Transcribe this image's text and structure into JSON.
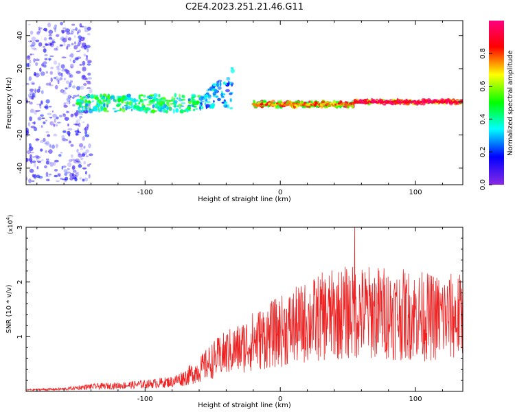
{
  "title": "C2E4.2023.251.21.46.G11",
  "chart_data": [
    {
      "type": "heatmap",
      "xlabel": "Height of straight line (km)",
      "ylabel": "Frequency (Hz)",
      "xlim": [
        -188,
        135
      ],
      "ylim": [
        -50,
        49
      ],
      "x_ticks": [
        -100,
        0,
        100
      ],
      "y_ticks": [
        -40,
        -20,
        0,
        20,
        40
      ],
      "grid": false,
      "colorbar": {
        "label": "Normalized spectral amplitude",
        "range": [
          0,
          1
        ],
        "ticks": [
          0.0,
          0.2,
          0.4,
          0.6,
          0.8
        ],
        "colormap": [
          "#8a2be2",
          "#0000ff",
          "#00ffff",
          "#00ff00",
          "#ffff00",
          "#ff0000",
          "#ff0080"
        ]
      },
      "bands": [
        {
          "x_range": [
            -188,
            -140
          ],
          "freq_range": [
            -48,
            48
          ],
          "amplitude": 0.15
        },
        {
          "x_range": [
            -150,
            -60
          ],
          "freq_range": [
            -6,
            4
          ],
          "amplitude": 0.45
        },
        {
          "x_range": [
            -60,
            -35
          ],
          "freq_range": [
            -4,
            22
          ],
          "amplitude": 0.3
        },
        {
          "x_range": [
            -20,
            55
          ],
          "freq_range": [
            -3,
            0
          ],
          "amplitude": 0.75
        },
        {
          "x_range": [
            55,
            135
          ],
          "freq_range": [
            -1,
            1
          ],
          "amplitude": 0.9
        }
      ]
    },
    {
      "type": "line",
      "xlabel": "Height of straight line (km)",
      "ylabel": "SNR (10 * v/v)",
      "y_multiplier": "(x10⁴)",
      "y_multiplier_base": "(x10",
      "y_multiplier_exp": "4",
      "y_multiplier_close": ")",
      "xlim": [
        -188,
        135
      ],
      "ylim": [
        0,
        30000
      ],
      "x_ticks": [
        -100,
        0,
        100
      ],
      "y_ticks": [
        1,
        2,
        3
      ],
      "grid": false,
      "series": [
        {
          "color": "#ee2222",
          "envelope_x": [
            -188,
            -160,
            -140,
            -120,
            -100,
            -80,
            -70,
            -60,
            -50,
            -40,
            -30,
            -20,
            -10,
            0,
            10,
            20,
            30,
            40,
            50,
            60,
            70,
            80,
            90,
            100,
            110,
            120,
            135
          ],
          "envelope_y": [
            300,
            500,
            1000,
            1200,
            1500,
            2000,
            3000,
            4500,
            6500,
            8000,
            9000,
            10500,
            11500,
            12500,
            13500,
            14500,
            15500,
            16000,
            16500,
            16500,
            16500,
            16500,
            16000,
            16000,
            15500,
            15500,
            15500
          ],
          "peak_x": 55,
          "peak_y": 30000
        }
      ]
    }
  ]
}
